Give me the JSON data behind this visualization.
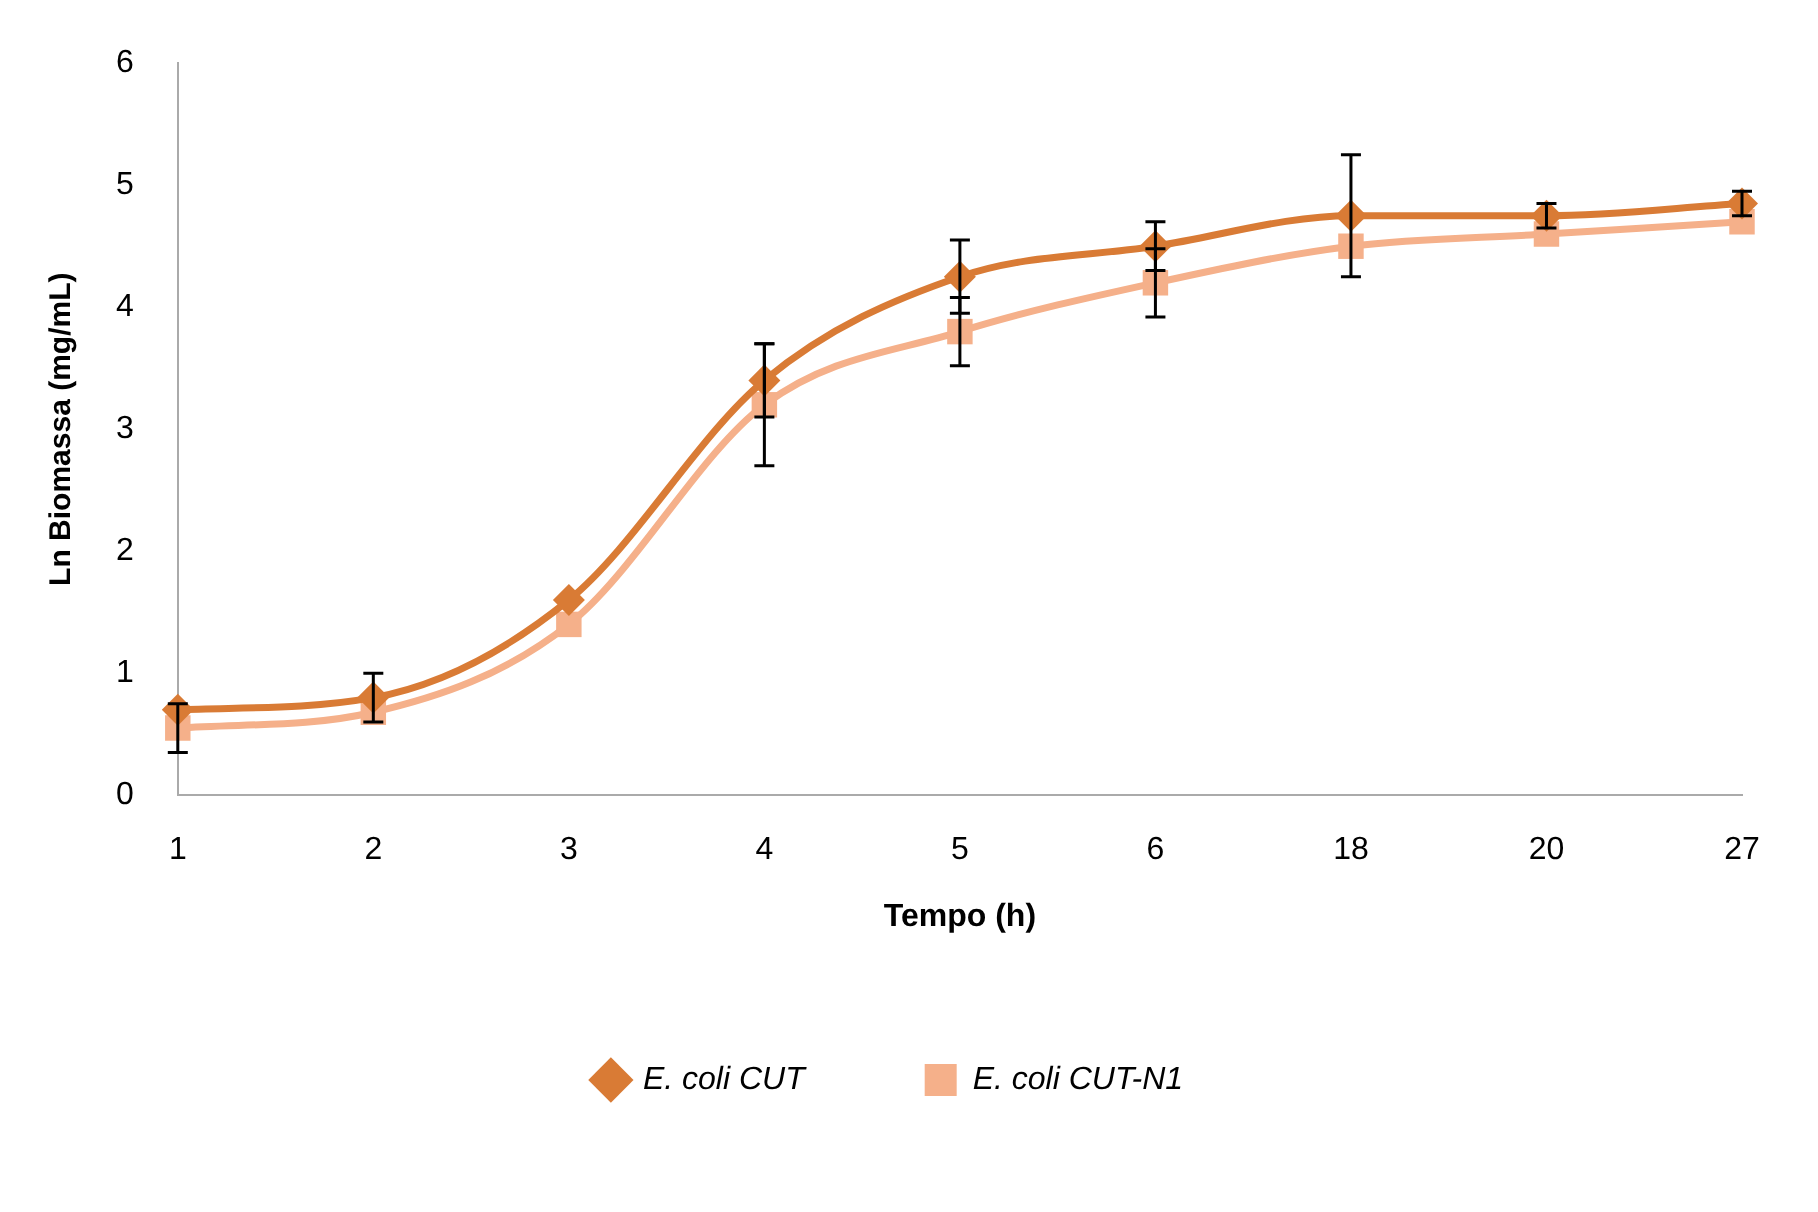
{
  "chart_data": {
    "type": "line",
    "xlabel": "Tempo (h)",
    "ylabel": "Ln Biomassa (mg/mL)",
    "categories": [
      "1",
      "2",
      "3",
      "4",
      "5",
      "6",
      "18",
      "20",
      "27"
    ],
    "series": [
      {
        "name": "E. coli CUT",
        "color": "#d97b35",
        "marker": "diamond",
        "values": [
          0.7,
          0.8,
          1.6,
          3.4,
          4.25,
          4.5,
          4.75,
          4.75,
          4.85
        ],
        "errors": [
          null,
          0.2,
          null,
          0.3,
          0.3,
          0.2,
          0.5,
          0.1,
          0.1
        ]
      },
      {
        "name": "E. coli CUT-N1",
        "color": "#f5b08a",
        "marker": "square",
        "values": [
          0.55,
          0.68,
          1.4,
          3.2,
          3.8,
          4.2,
          4.5,
          4.6,
          4.7
        ],
        "errors": [
          0.2,
          null,
          null,
          0.5,
          0.28,
          0.28,
          null,
          null,
          null
        ]
      }
    ],
    "ylim": [
      0,
      6
    ],
    "yticks": [
      0,
      1,
      2,
      3,
      4,
      5,
      6
    ],
    "grid": false,
    "legend": "bottom",
    "line_style": "solid"
  }
}
